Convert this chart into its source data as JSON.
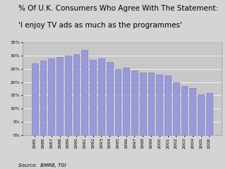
{
  "title_line1": "% Of U.K. Consumers Who Agree With The Statement:",
  "title_line2": "'I enjoy TV ads as much as the programmes'",
  "source": "Source:  BMRB, TGI",
  "years": [
    1985,
    1986,
    1987,
    1988,
    1989,
    1990,
    1991,
    1992,
    1993,
    1994,
    1995,
    1996,
    1997,
    1998,
    1999,
    2000,
    2001,
    2002,
    2003,
    2004,
    2005,
    2006
  ],
  "values": [
    0.27,
    0.28,
    0.29,
    0.295,
    0.3,
    0.305,
    0.32,
    0.285,
    0.29,
    0.275,
    0.25,
    0.255,
    0.245,
    0.235,
    0.235,
    0.228,
    0.225,
    0.2,
    0.185,
    0.178,
    0.155,
    0.158
  ],
  "bar_color": "#9999dd",
  "bar_edge_color": "#7777bb",
  "fig_bg_color": "#d4d4d4",
  "plot_bg_color": "#c8c8c8",
  "ylim": [
    0,
    0.35
  ],
  "yticks": [
    0,
    0.05,
    0.1,
    0.15,
    0.2,
    0.25,
    0.3,
    0.35
  ],
  "title_fontsize": 7.5,
  "axis_fontsize": 4.5,
  "source_fontsize": 5.0
}
